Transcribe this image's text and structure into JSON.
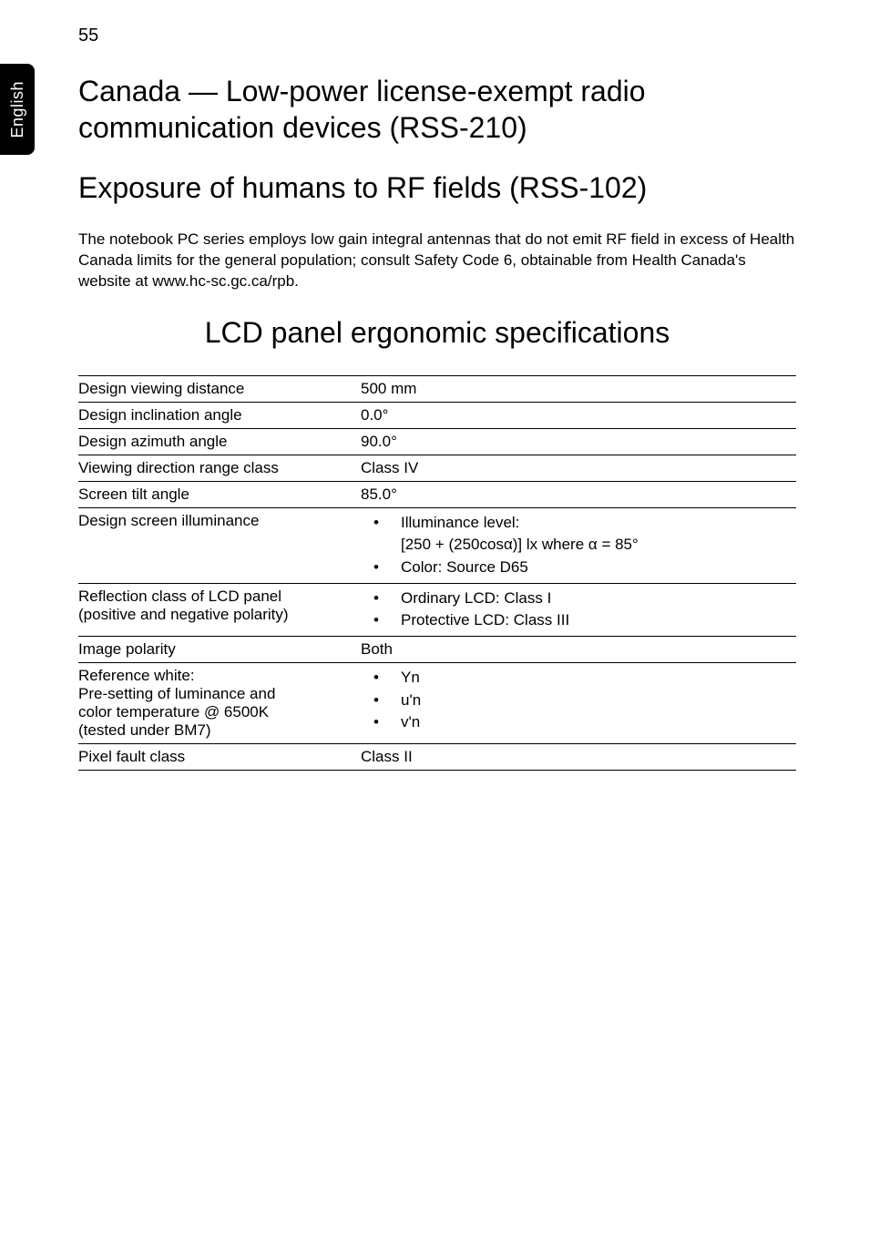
{
  "page_number": "55",
  "side_tab_label": "English",
  "section1_title": "Canada — Low-power license-exempt radio communication devices (RSS-210)",
  "section2_title": "Exposure of humans to RF fields (RSS-102)",
  "section2_body": "The notebook PC series employs low gain integral antennas that do not emit RF field in excess of Health Canada limits for the general population; consult Safety Code 6, obtainable from Health Canada's website at www.hc-sc.gc.ca/rpb.",
  "table_title": "LCD panel ergonomic specifications",
  "rows": {
    "r0": {
      "label": "Design viewing distance",
      "value": "500 mm"
    },
    "r1": {
      "label": "Design inclination angle",
      "value": "0.0°"
    },
    "r2": {
      "label": "Design azimuth angle",
      "value": "90.0°"
    },
    "r3": {
      "label": "Viewing direction range class",
      "value": "Class IV"
    },
    "r4": {
      "label": "Screen tilt angle",
      "value": "85.0°"
    },
    "r5": {
      "label": "Design screen illuminance",
      "b1": "Illuminance level:",
      "b1_sub": "[250 + (250cosα)] lx where α = 85°",
      "b2": "Color: Source D65"
    },
    "r6": {
      "label_l1": "Reflection class of LCD panel",
      "label_l2": "(positive and negative polarity)",
      "b1": "Ordinary LCD: Class I",
      "b2": "Protective LCD: Class III"
    },
    "r7": {
      "label": "Image polarity",
      "value": "Both"
    },
    "r8": {
      "label_l1": "Reference white:",
      "label_l2": "Pre-setting of luminance and",
      "label_l3": "color temperature @ 6500K",
      "label_l4": "(tested under BM7)",
      "b1": "Yn",
      "b2": "u'n",
      "b3": "v'n"
    },
    "r9": {
      "label": "Pixel fault class",
      "value": "Class II"
    }
  }
}
